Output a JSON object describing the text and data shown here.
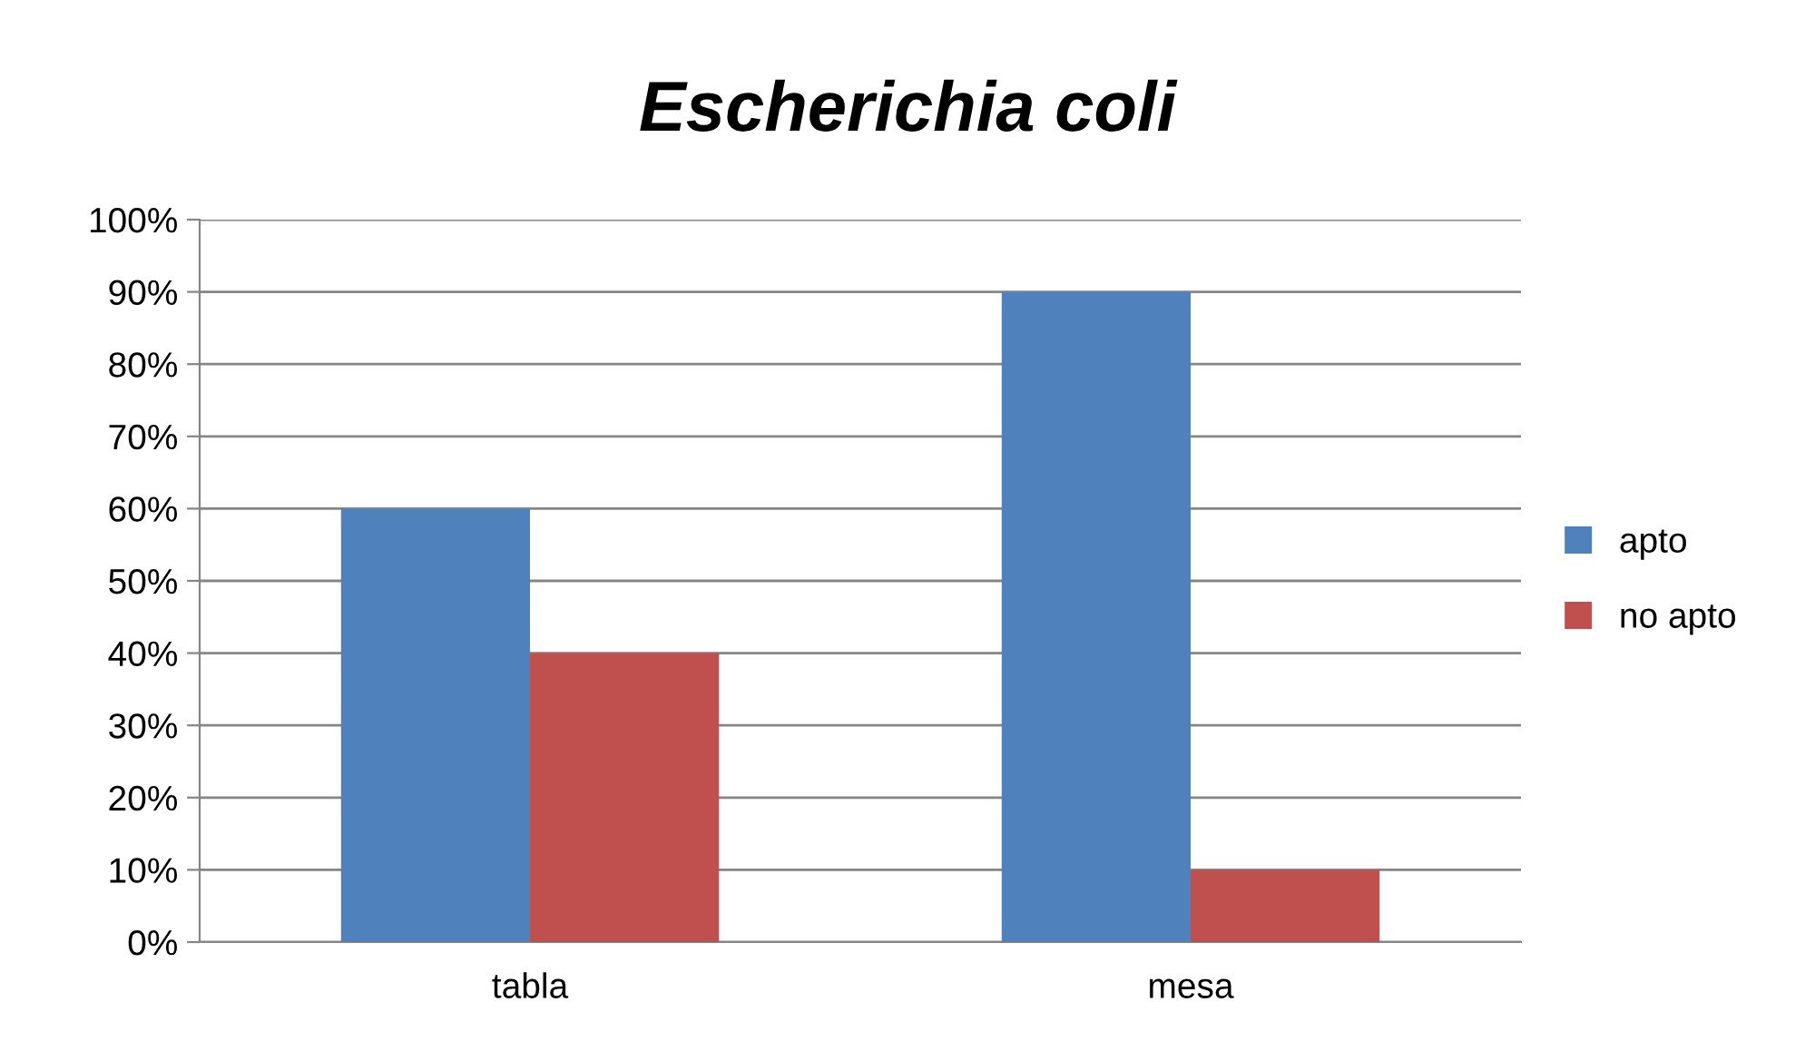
{
  "chart_data": {
    "type": "bar",
    "title": "Escherichia coli",
    "categories": [
      "tabla",
      "mesa"
    ],
    "series": [
      {
        "name": "apto",
        "color": "#4f81bd",
        "values": [
          60,
          90
        ]
      },
      {
        "name": "no apto",
        "color": "#c0504d",
        "values": [
          40,
          10
        ]
      }
    ],
    "ylim": [
      0,
      100
    ],
    "yticks": [
      {
        "value": 0,
        "label": "0%"
      },
      {
        "value": 10,
        "label": "10%"
      },
      {
        "value": 20,
        "label": "20%"
      },
      {
        "value": 30,
        "label": "30%"
      },
      {
        "value": 40,
        "label": "40%"
      },
      {
        "value": 50,
        "label": "50%"
      },
      {
        "value": 60,
        "label": "60%"
      },
      {
        "value": 70,
        "label": "70%"
      },
      {
        "value": 80,
        "label": "80%"
      },
      {
        "value": 90,
        "label": "90%"
      },
      {
        "value": 100,
        "label": "100%"
      }
    ],
    "grid": "y",
    "legend": "right"
  }
}
